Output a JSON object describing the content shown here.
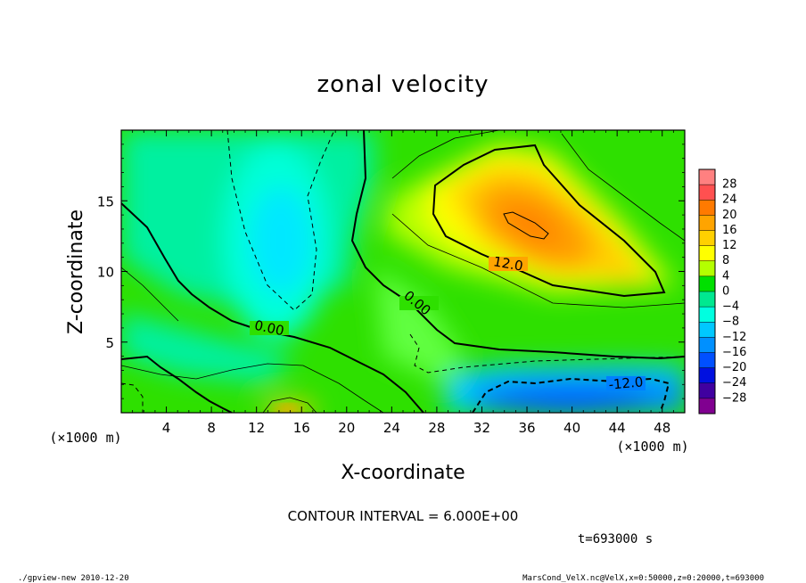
{
  "chart_data": {
    "type": "heatmap",
    "title": "zonal velocity",
    "xlabel": "X-coordinate",
    "ylabel": "Z-coordinate",
    "x_unit_label": "(×1000 m)",
    "y_unit_label": "(×1000 m)",
    "x_ticks": [
      4,
      8,
      12,
      16,
      20,
      24,
      28,
      32,
      36,
      40,
      44,
      48
    ],
    "y_ticks": [
      5,
      10,
      15
    ],
    "xlim": [
      0,
      50
    ],
    "ylim": [
      0,
      20
    ],
    "colorbar_levels": [
      28,
      24,
      20,
      16,
      12,
      8,
      4,
      0,
      -4,
      -8,
      -12,
      -16,
      -20,
      -24,
      -28
    ],
    "colorbar_colors": [
      "#ff8080",
      "#ff5050",
      "#ff7a00",
      "#ffa400",
      "#ffd000",
      "#ffff00",
      "#b4ff00",
      "#00e000",
      "#00e890",
      "#00ffe0",
      "#00c8ff",
      "#0090ff",
      "#0050ff",
      "#0010e0",
      "#4000a0",
      "#800090"
    ],
    "contour_interval_text": "CONTOUR INTERVAL = 6.000E+00",
    "contour_labels": [
      "12.0",
      "0.00",
      "0.00",
      "-12.0"
    ],
    "features": [
      {
        "kind": "max",
        "x": 36,
        "z": 13,
        "value": 18
      },
      {
        "kind": "min",
        "x": 41,
        "z": 1.5,
        "value": -18
      },
      {
        "kind": "min",
        "x": 14,
        "z": 12,
        "value": -10
      }
    ]
  },
  "footer": {
    "time": "t=693000 s",
    "program": "./gpview-new   2010-12-20",
    "source": "MarsCond_VelX.nc@VelX,x=0:50000,z=0:20000,t=693000"
  }
}
